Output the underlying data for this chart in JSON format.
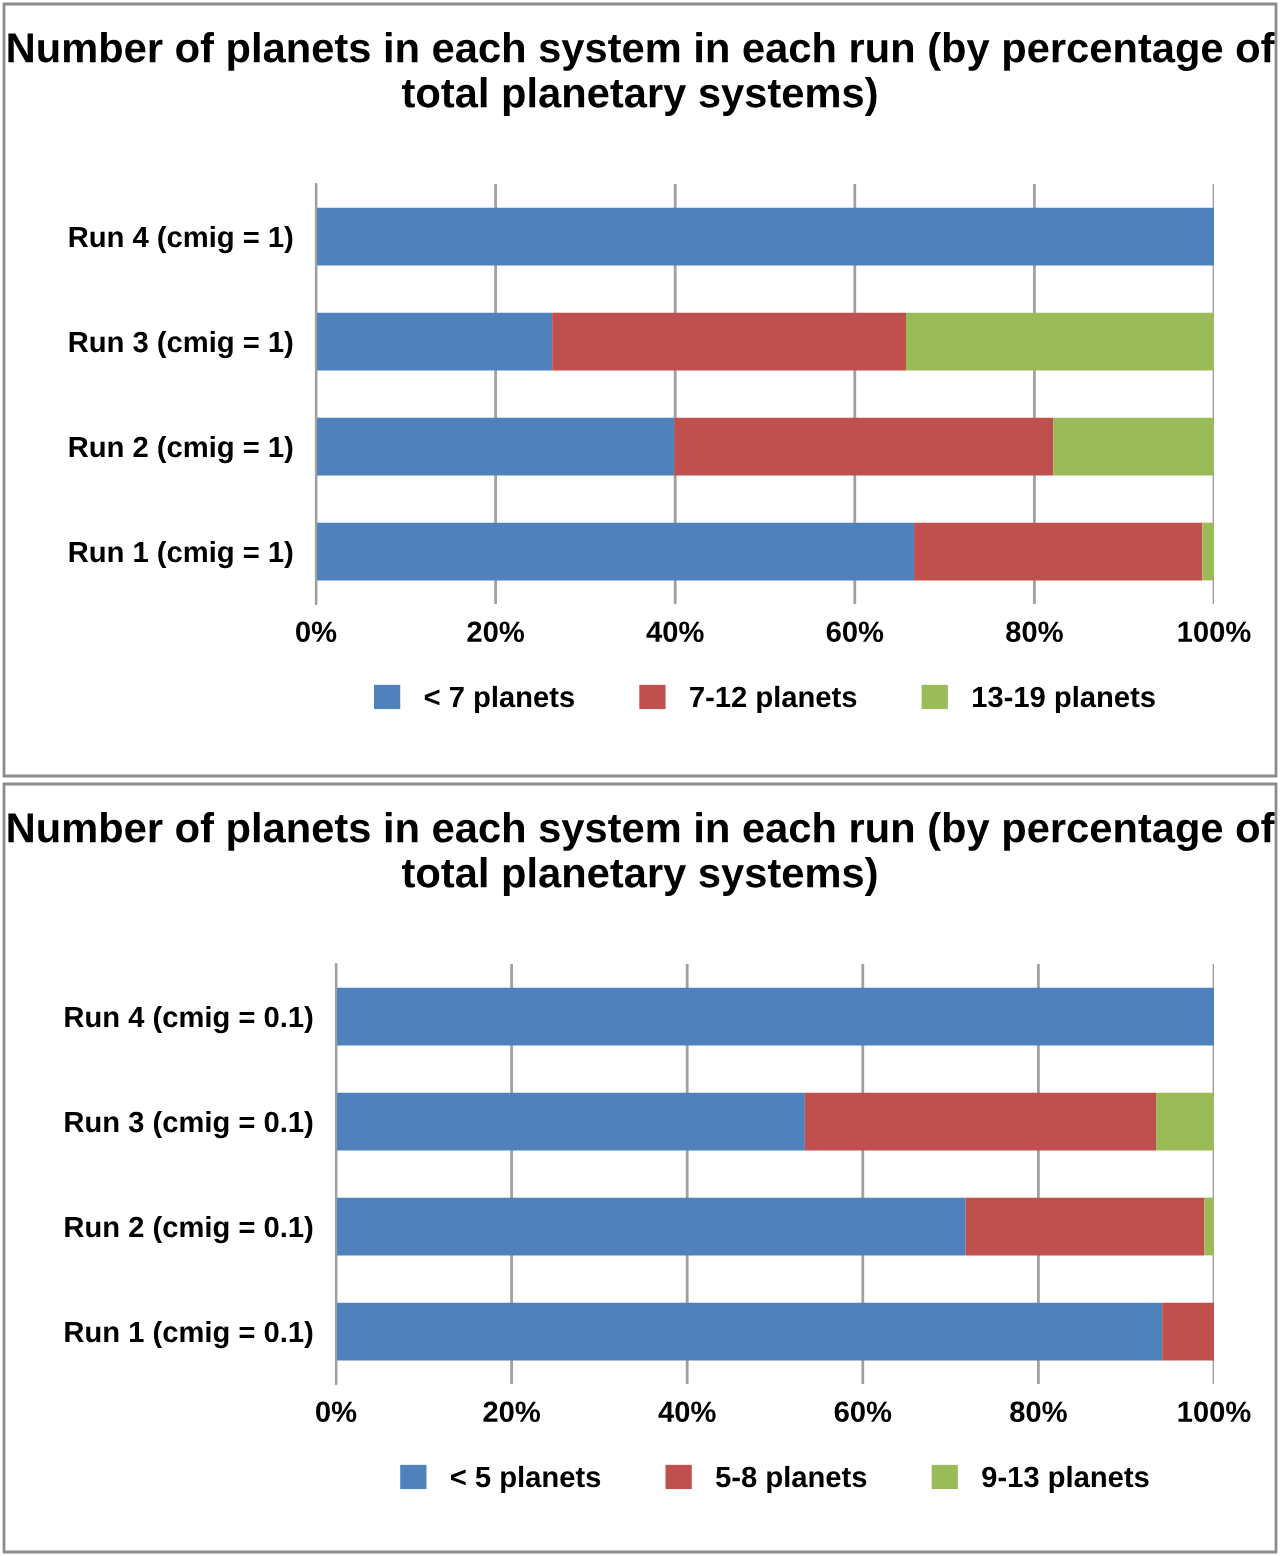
{
  "chart_data": [
    {
      "type": "bar",
      "orientation": "horizontal",
      "stacked": true,
      "title": "Number of planets in each system in each run (by percentage of total planetary systems)",
      "categories": [
        "Run 4 (cmig = 1)",
        "Run 3 (cmig = 1)",
        "Run 2 (cmig = 1)",
        "Run 1 (cmig = 1)"
      ],
      "series": [
        {
          "name": "< 7 planets",
          "color": "#4f81bd",
          "values": [
            100,
            26.3,
            39.9,
            66.6
          ]
        },
        {
          "name": "7-12 planets",
          "color": "#c0504d",
          "values": [
            0,
            39.4,
            42.2,
            32.1
          ]
        },
        {
          "name": "13-19 planets",
          "color": "#9bbb59",
          "values": [
            0,
            34.3,
            17.9,
            1.3
          ]
        }
      ],
      "xlim": [
        0,
        100
      ],
      "xticks": [
        {
          "value": 0,
          "label": "0%"
        },
        {
          "value": 20,
          "label": "20%"
        },
        {
          "value": 40,
          "label": "40%"
        },
        {
          "value": 60,
          "label": "60%"
        },
        {
          "value": 80,
          "label": "80%"
        },
        {
          "value": 100,
          "label": "100%"
        }
      ],
      "grid": "x",
      "legend": "bottom"
    },
    {
      "type": "bar",
      "orientation": "horizontal",
      "stacked": true,
      "title": "Number of planets in each system in each run (by percentage of total planetary systems)",
      "categories": [
        "Run 4 (cmig = 0.1)",
        "Run 3 (cmig = 0.1)",
        "Run 2 (cmig = 0.1)",
        "Run 1 (cmig = 0.1)"
      ],
      "series": [
        {
          "name": "< 5 planets",
          "color": "#4f81bd",
          "values": [
            100,
            53.4,
            71.7,
            94.1
          ]
        },
        {
          "name": "5-8 planets",
          "color": "#c0504d",
          "values": [
            0,
            40.0,
            27.2,
            5.9
          ]
        },
        {
          "name": "9-13 planets",
          "color": "#9bbb59",
          "values": [
            0,
            6.6,
            1.1,
            0
          ]
        }
      ],
      "xlim": [
        0,
        100
      ],
      "xticks": [
        {
          "value": 0,
          "label": "0%"
        },
        {
          "value": 20,
          "label": "20%"
        },
        {
          "value": 40,
          "label": "40%"
        },
        {
          "value": 60,
          "label": "60%"
        },
        {
          "value": 80,
          "label": "80%"
        },
        {
          "value": 100,
          "label": "100%"
        }
      ],
      "grid": "x",
      "legend": "bottom"
    }
  ]
}
